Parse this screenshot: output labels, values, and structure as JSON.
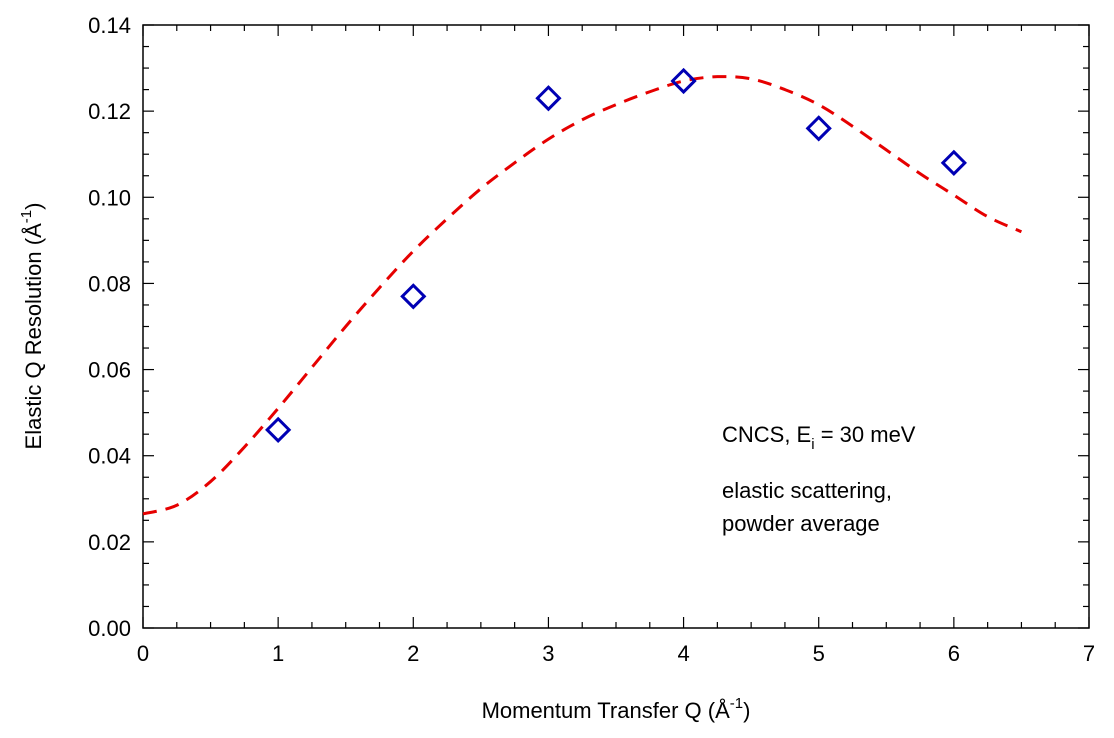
{
  "chart_data": {
    "type": "scatter",
    "xlabel": {
      "text": "Momentum Transfer Q (Å",
      "sup": "-1",
      "close": ")"
    },
    "ylabel": {
      "text": "Elastic Q Resolution (Å",
      "sup": "-1",
      "close": ")"
    },
    "xlim": [
      0,
      7
    ],
    "ylim": [
      0,
      0.14
    ],
    "x_ticks": [
      0,
      1,
      2,
      3,
      4,
      5,
      6,
      7
    ],
    "x_tick_labels": [
      "0",
      "1",
      "2",
      "3",
      "4",
      "5",
      "6",
      "7"
    ],
    "y_ticks": [
      0,
      0.02,
      0.04,
      0.06,
      0.08,
      0.1,
      0.12,
      0.14
    ],
    "y_tick_labels": [
      "0.00",
      "0.02",
      "0.04",
      "0.06",
      "0.08",
      "0.10",
      "0.12",
      "0.14"
    ],
    "grid": false,
    "series": [
      {
        "style": "diamond-markers",
        "color": "#0000b4",
        "x": [
          1,
          2,
          3,
          4,
          5,
          6
        ],
        "y": [
          0.046,
          0.077,
          0.123,
          0.127,
          0.116,
          0.108
        ]
      },
      {
        "style": "dashed-line",
        "color": "#e60000",
        "x": [
          0,
          0.25,
          0.5,
          0.75,
          1.0,
          1.25,
          1.5,
          1.75,
          2.0,
          2.25,
          2.5,
          2.75,
          3.0,
          3.25,
          3.5,
          3.75,
          4.0,
          4.25,
          4.5,
          4.75,
          5.0,
          5.25,
          5.5,
          5.75,
          6.0,
          6.25,
          6.5
        ],
        "y": [
          0.0265,
          0.0285,
          0.034,
          0.042,
          0.051,
          0.0605,
          0.07,
          0.079,
          0.0875,
          0.095,
          0.102,
          0.108,
          0.1135,
          0.118,
          0.1215,
          0.1245,
          0.127,
          0.128,
          0.1275,
          0.125,
          0.1215,
          0.1165,
          0.111,
          0.1055,
          0.1005,
          0.0955,
          0.092
        ]
      }
    ],
    "annotations": [
      {
        "text": "CNCS, E",
        "sub": "i",
        "after": " = 30 meV"
      },
      {
        "text": "elastic scattering,"
      },
      {
        "text": "powder average"
      }
    ]
  }
}
